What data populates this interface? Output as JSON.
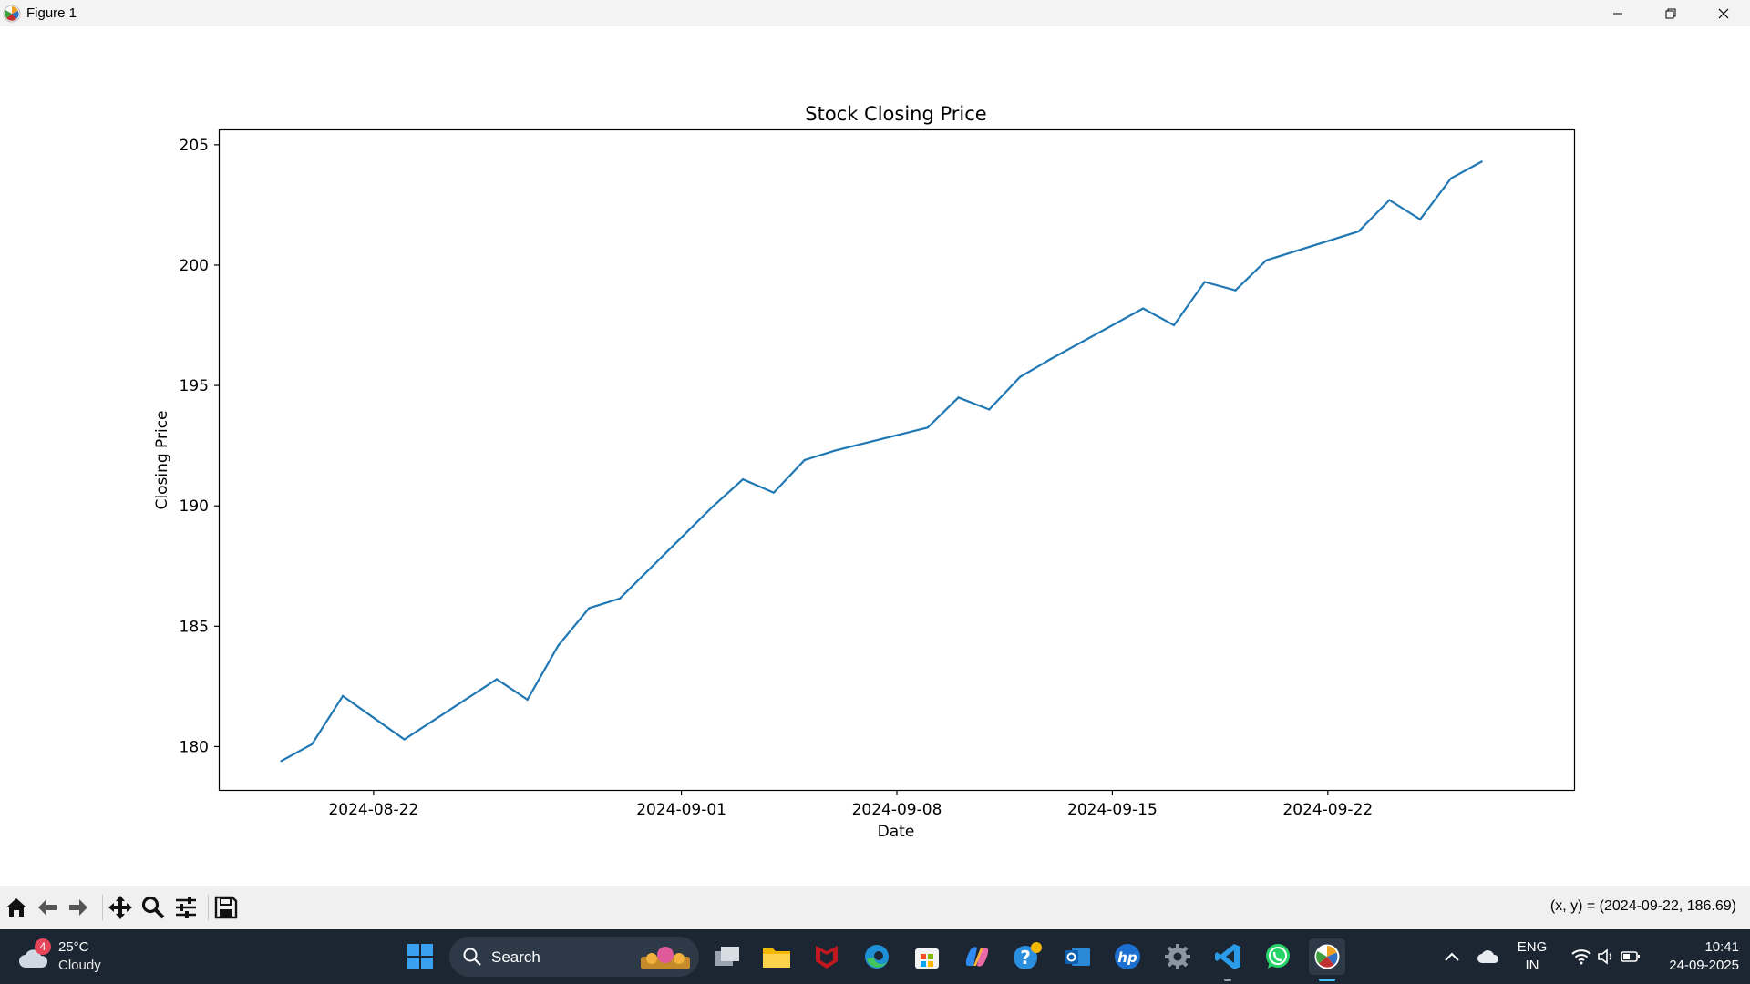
{
  "window": {
    "title": "Figure 1",
    "icons": [
      "matplotlib-icon",
      "minimize-icon",
      "restore-icon",
      "close-icon"
    ]
  },
  "chart_data": {
    "type": "line",
    "title": "Stock Closing Price",
    "xlabel": "Date",
    "ylabel": "Closing Price",
    "x_tick_labels": [
      "2024-08-22",
      "2024-09-01",
      "2024-09-08",
      "2024-09-15",
      "2024-09-22"
    ],
    "y_tick_labels": [
      "180",
      "185",
      "190",
      "195",
      "200",
      "205"
    ],
    "y_ticks": [
      180,
      185,
      190,
      195,
      200,
      205
    ],
    "ylim": [
      178.2,
      205.6
    ],
    "xlim": [
      "2024-08-17",
      "2024-09-30"
    ],
    "grid": false,
    "series": [
      {
        "color": "#1f77b4",
        "x": [
          "2024-08-19",
          "2024-08-20",
          "2024-08-21",
          "2024-08-23",
          "2024-08-26",
          "2024-08-27",
          "2024-08-28",
          "2024-08-29",
          "2024-08-30",
          "2024-09-02",
          "2024-09-03",
          "2024-09-04",
          "2024-09-05",
          "2024-09-06",
          "2024-09-09",
          "2024-09-10",
          "2024-09-11",
          "2024-09-12",
          "2024-09-13",
          "2024-09-16",
          "2024-09-17",
          "2024-09-18",
          "2024-09-19",
          "2024-09-20",
          "2024-09-23",
          "2024-09-24",
          "2024-09-25",
          "2024-09-26",
          "2024-09-27"
        ],
        "y": [
          179.4,
          180.1,
          182.1,
          180.3,
          182.8,
          181.95,
          184.2,
          185.75,
          186.15,
          189.95,
          191.1,
          190.55,
          191.9,
          192.3,
          193.25,
          194.5,
          194.0,
          195.35,
          196.1,
          198.2,
          197.5,
          199.3,
          198.95,
          200.2,
          201.4,
          202.7,
          201.9,
          203.6,
          204.3
        ]
      }
    ]
  },
  "toolbar": {
    "buttons": [
      {
        "name": "home-icon",
        "label": "Home"
      },
      {
        "name": "back-icon",
        "label": "Back"
      },
      {
        "name": "forward-icon",
        "label": "Forward"
      },
      {
        "name": "pan-icon",
        "label": "Pan"
      },
      {
        "name": "zoom-icon",
        "label": "Zoom"
      },
      {
        "name": "subplots-icon",
        "label": "Subplots"
      },
      {
        "name": "save-icon",
        "label": "Save"
      }
    ],
    "coords": "(x, y) = (2024-09-22, 186.69)"
  },
  "taskbar": {
    "weather": {
      "temp": "25°C",
      "condition": "Cloudy",
      "badge": "4"
    },
    "search_label": "Search",
    "apps": [
      "windows-start-icon",
      "task-view-icon",
      "file-explorer-icon",
      "mcafee-icon",
      "edge-icon",
      "microsoft-store-icon",
      "copilot-icon",
      "help-icon",
      "outlook-icon",
      "hp-icon",
      "settings-icon",
      "vscode-icon",
      "whatsapp-icon",
      "matplotlib-icon"
    ],
    "tray": {
      "lang1": "ENG",
      "lang2": "IN",
      "time": "10:41",
      "date": "24-09-2025"
    }
  }
}
